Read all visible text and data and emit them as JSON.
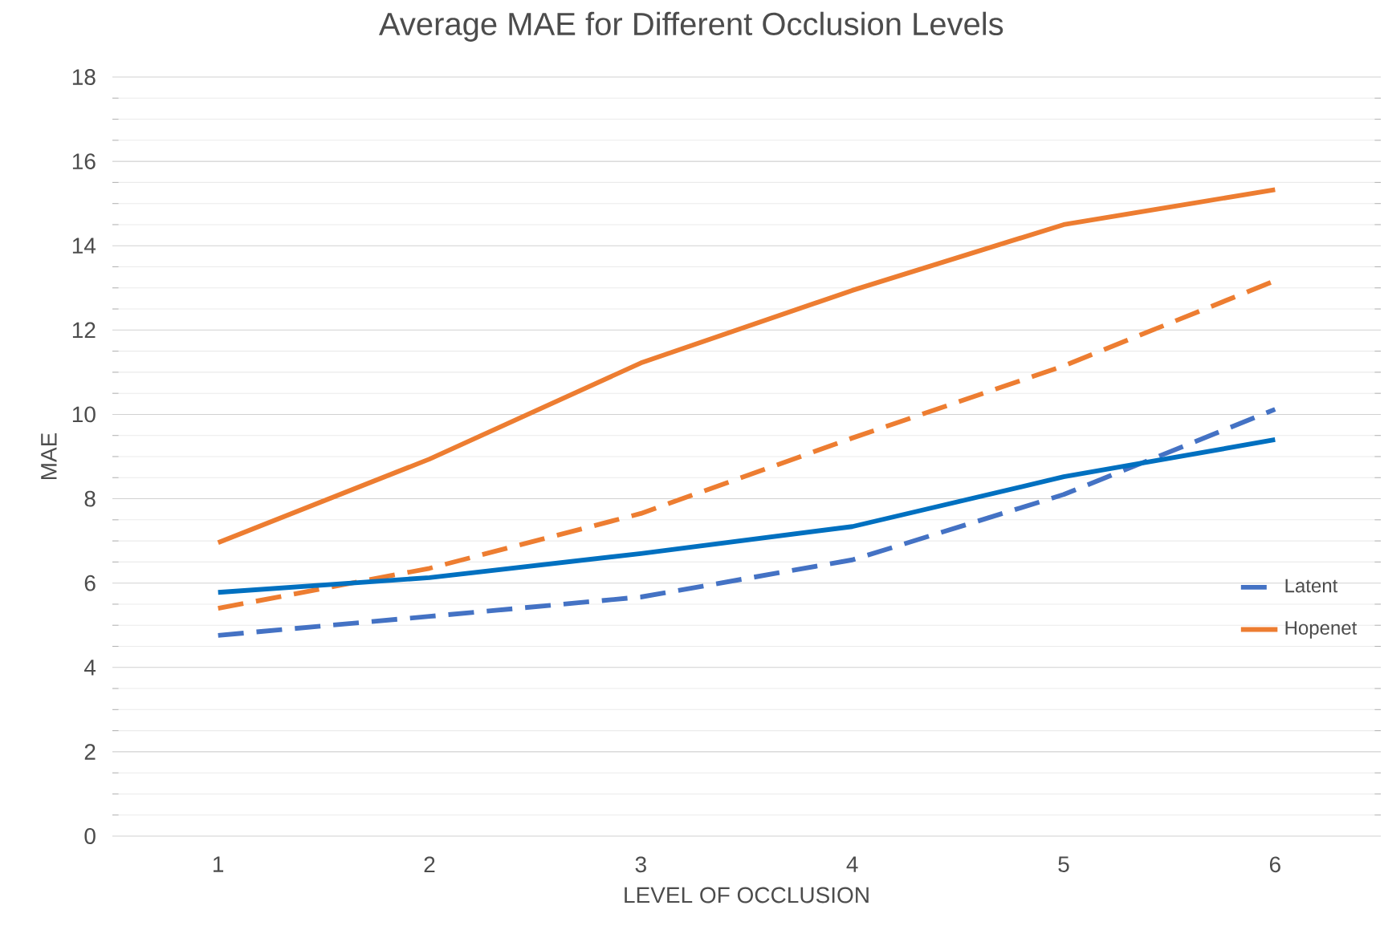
{
  "chart_data": {
    "type": "line",
    "title": "Average MAE for Different Occlusion Levels",
    "xlabel": "LEVEL OF OCCLUSION",
    "ylabel": "MAE",
    "categories": [
      "1",
      "2",
      "3",
      "4",
      "5",
      "6"
    ],
    "series": [
      {
        "name": "Latent",
        "color": "#4472c4",
        "line_style": "dashed",
        "values": [
          4.76,
          5.21,
          5.67,
          6.55,
          8.1,
          10.12
        ]
      },
      {
        "name": "Hopenet",
        "color": "#ed7d31",
        "line_style": "solid",
        "values": [
          6.96,
          8.94,
          11.22,
          12.94,
          14.5,
          15.33
        ]
      },
      {
        "color": "#ed7d31",
        "line_style": "dashed",
        "values": [
          5.4,
          6.35,
          7.65,
          9.44,
          11.15,
          13.17
        ]
      },
      {
        "color": "#0070c0",
        "line_style": "solid",
        "values": [
          5.78,
          6.13,
          6.7,
          7.34,
          8.52,
          9.4
        ]
      }
    ],
    "ylim": [
      0,
      18
    ],
    "yticks": [
      0,
      2,
      4,
      6,
      8,
      10,
      12,
      14,
      16,
      18
    ],
    "grid": "y",
    "legend": "right",
    "marker": "none"
  }
}
